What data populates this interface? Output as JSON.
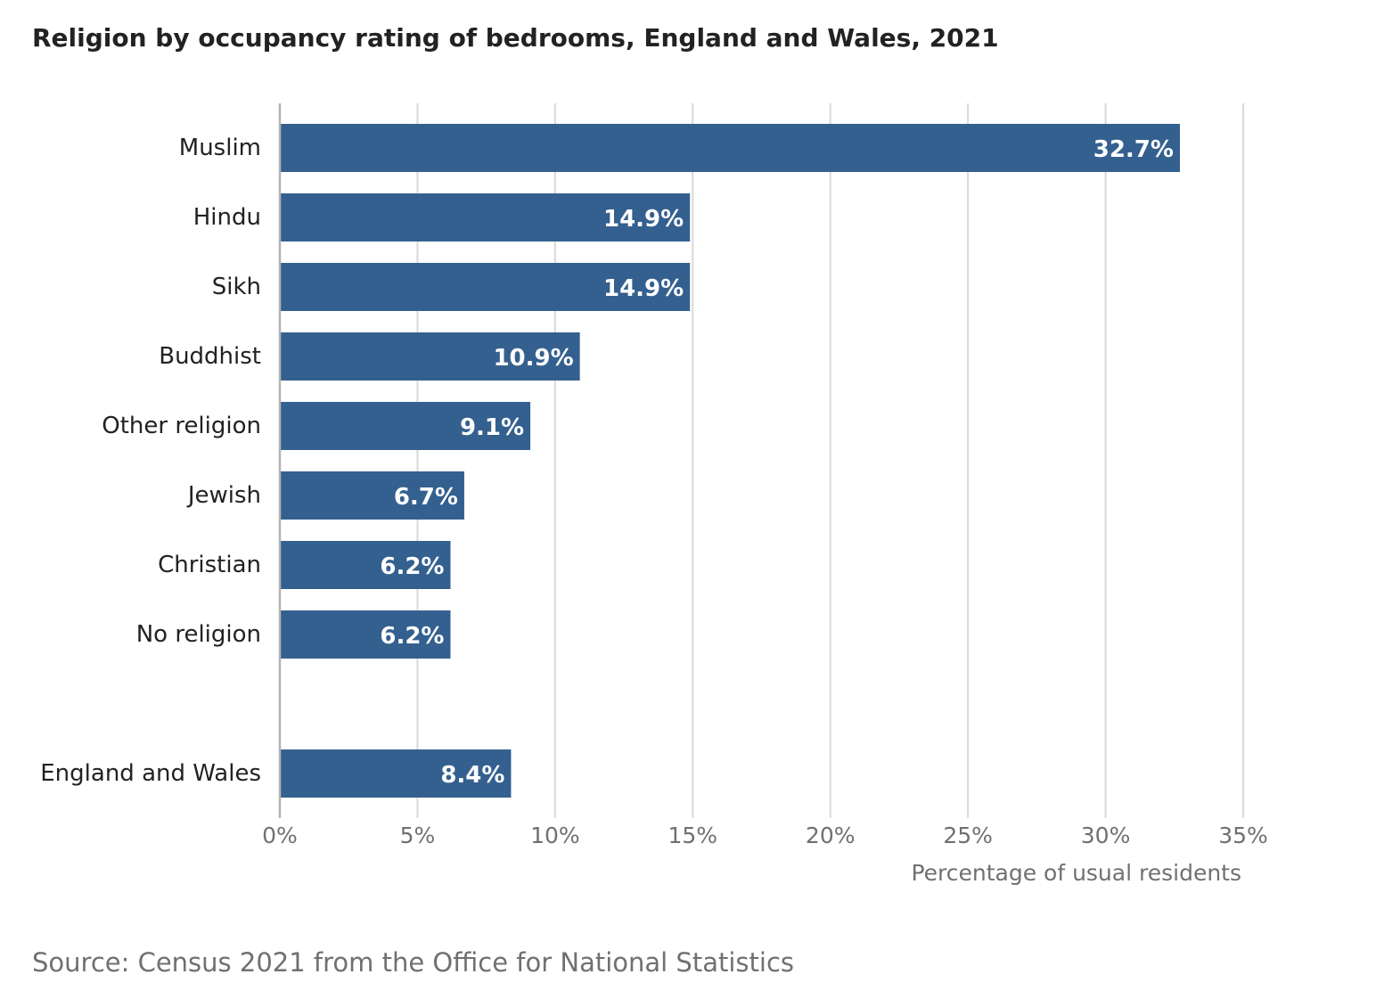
{
  "title": "Religion by occupancy rating of bedrooms, England and Wales, 2021",
  "source": "Source: Census 2021 from the Office for National Statistics",
  "colors": {
    "bar": "#34608f",
    "grid": "#d9d9d9",
    "axis": "#b3b3b3",
    "label_text": "#222222",
    "tick_text": "#707070",
    "value_text": "#ffffff"
  },
  "chart_data": {
    "type": "bar",
    "orientation": "horizontal",
    "categories": [
      "Muslim",
      "Hindu",
      "Sikh",
      "Buddhist",
      "Other religion",
      "Jewish",
      "Christian",
      "No religion",
      "England and Wales"
    ],
    "values": [
      32.7,
      14.9,
      14.9,
      10.9,
      9.1,
      6.7,
      6.2,
      6.2,
      8.4
    ],
    "value_labels": [
      "32.7%",
      "14.9%",
      "14.9%",
      "10.9%",
      "9.1%",
      "6.7%",
      "6.2%",
      "6.2%",
      "8.4%"
    ],
    "xlim": [
      0,
      35
    ],
    "xticks": [
      0,
      5,
      10,
      15,
      20,
      25,
      30,
      35
    ],
    "xtick_labels": [
      "0%",
      "5%",
      "10%",
      "15%",
      "20%",
      "25%",
      "30%",
      "35%"
    ],
    "xlabel": "Percentage of usual residents",
    "ylabel": "",
    "grid": true
  }
}
